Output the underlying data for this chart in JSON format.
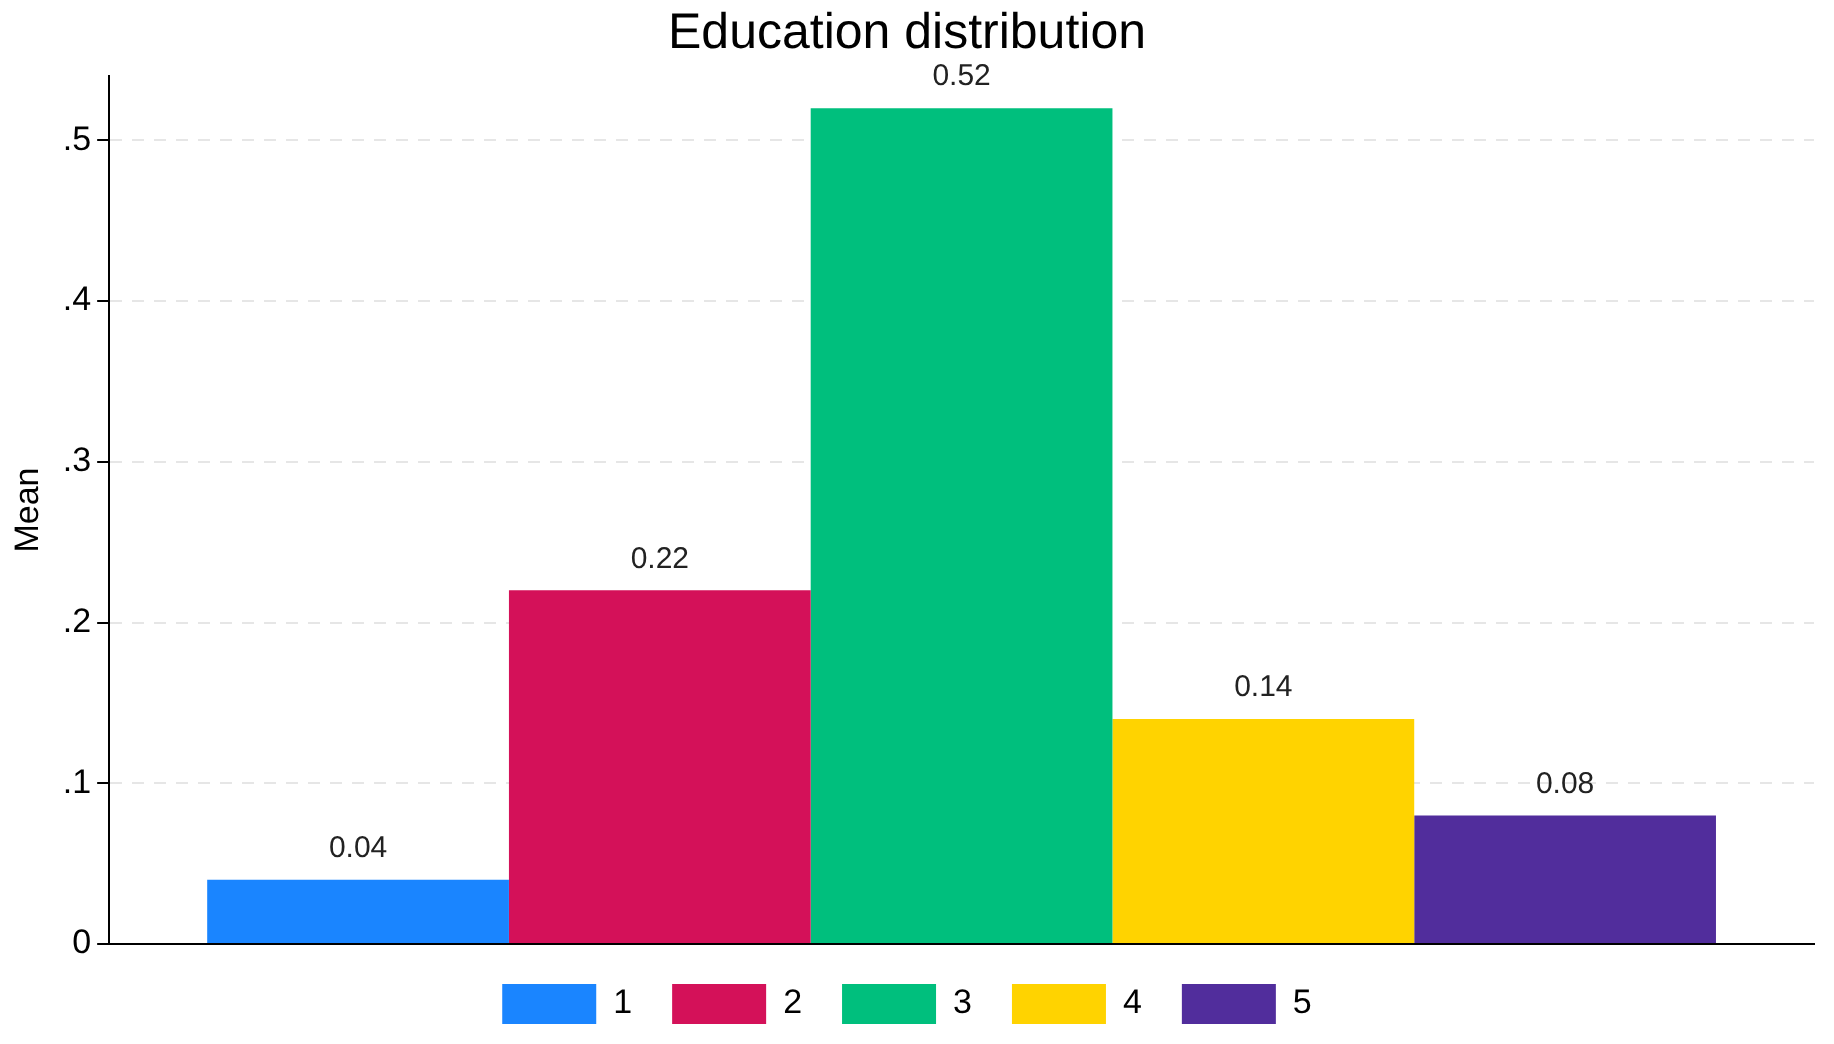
{
  "chart_data": {
    "type": "bar",
    "title": "Education distribution",
    "ylabel": "Mean",
    "categories": [
      null
    ],
    "series": [
      {
        "name": "1",
        "color": "#1a85ff",
        "values": [
          0.04
        ]
      },
      {
        "name": "2",
        "color": "#d41159",
        "values": [
          0.22
        ]
      },
      {
        "name": "3",
        "color": "#00bf7d",
        "values": [
          0.52
        ]
      },
      {
        "name": "4",
        "color": "#ffd300",
        "values": [
          0.14
        ]
      },
      {
        "name": "5",
        "color": "#512d9c",
        "values": [
          0.08
        ]
      }
    ],
    "ylim": [
      0,
      0.54
    ],
    "yticks": [
      0,
      {
        "value": 0.1,
        "label": ".1"
      },
      {
        "value": 0.2,
        "label": ".2"
      },
      {
        "value": 0.3,
        "label": ".3"
      },
      {
        "value": 0.4,
        "label": ".4"
      },
      {
        "value": 0.5,
        "label": ".5"
      }
    ],
    "grid": "y",
    "legend": "bottom",
    "data_labels": true,
    "tick_labels": "y"
  }
}
